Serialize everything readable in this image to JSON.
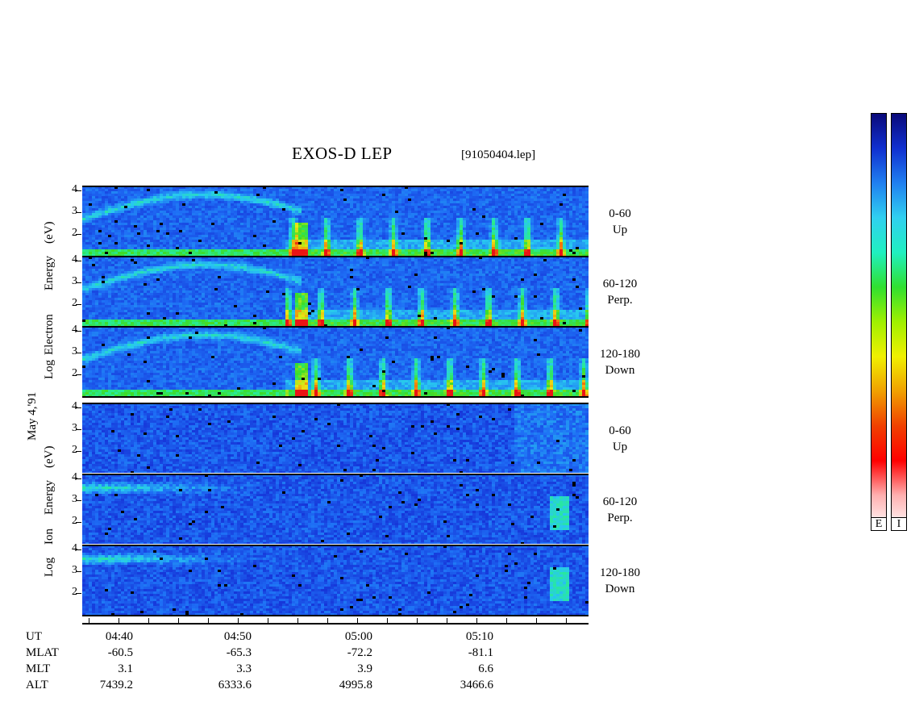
{
  "title": "EXOS-D LEP",
  "filename": "[91050404.lep]",
  "date_label": "May 4,'91",
  "electron_axis": [
    "Log",
    "Electron",
    "Energy",
    "(eV)"
  ],
  "ion_axis": [
    "Log",
    "Ion",
    "Energy",
    "(eV)"
  ],
  "y_ticks": [
    "4",
    "3",
    "2"
  ],
  "panels": [
    {
      "angle": "0-60",
      "dir": "Up",
      "species": "electron"
    },
    {
      "angle": "60-120",
      "dir": "Perp.",
      "species": "electron"
    },
    {
      "angle": "120-180",
      "dir": "Down",
      "species": "electron"
    },
    {
      "angle": "0-60",
      "dir": "Up",
      "species": "ion"
    },
    {
      "angle": "60-120",
      "dir": "Perp.",
      "species": "ion"
    },
    {
      "angle": "120-180",
      "dir": "Down",
      "species": "ion"
    }
  ],
  "colorbar_labels": [
    "E",
    "I"
  ],
  "colorbar_colors": [
    "#0a0a7a",
    "#1030d0",
    "#2080f0",
    "#30d0f0",
    "#20f0c0",
    "#30e030",
    "#a0f000",
    "#f0f000",
    "#f0a000",
    "#f04000",
    "#ff0000",
    "#ffb0b0",
    "#ffffff"
  ],
  "footer": {
    "row_labels": [
      "UT",
      "MLAT",
      "MLT",
      "ALT"
    ],
    "columns": [
      {
        "ut": "04:40",
        "mlat": "-60.5",
        "mlt": "3.1",
        "alt": "7439.2"
      },
      {
        "ut": "04:50",
        "mlat": "-65.3",
        "mlt": "3.3",
        "alt": "6333.6"
      },
      {
        "ut": "05:00",
        "mlat": "-72.2",
        "mlt": "3.9",
        "alt": "4995.8"
      },
      {
        "ut": "05:10",
        "mlat": "-81.1",
        "mlt": "6.6",
        "alt": "3466.6"
      }
    ]
  },
  "chart_data": {
    "type": "heatmap",
    "title": "EXOS-D LEP",
    "xlabel": "UT",
    "ylabel": "Log Energy (eV)",
    "ylim": [
      1,
      4.2
    ],
    "x_ticks": [
      "04:40",
      "04:50",
      "05:00",
      "05:10"
    ],
    "y_ticks": [
      2,
      3,
      4
    ],
    "panels": [
      "0-60 Up",
      "60-120 Perp.",
      "120-180 Down",
      "0-60 Up",
      "60-120 Perp.",
      "120-180 Down"
    ]
  }
}
